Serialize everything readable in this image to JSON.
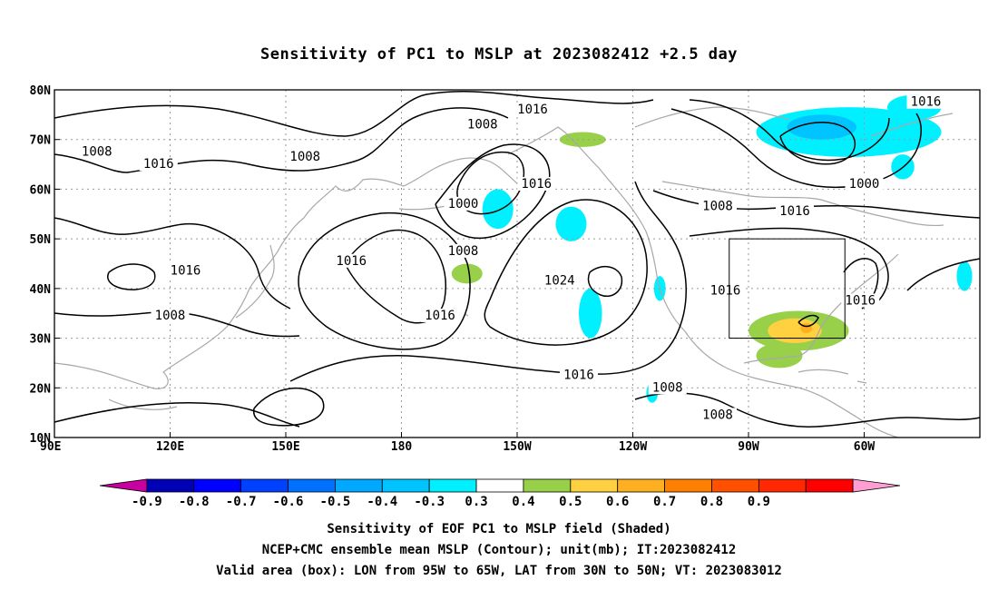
{
  "title": "Sensitivity of PC1 to MSLP at 2023082412 +2.5 day",
  "axes": {
    "lon_labels": [
      "90E",
      "120E",
      "150E",
      "180",
      "150W",
      "120W",
      "90W",
      "60W"
    ],
    "lat_labels": [
      "80N",
      "70N",
      "60N",
      "50N",
      "40N",
      "30N",
      "20N",
      "10N"
    ]
  },
  "isobar_labels": [
    {
      "text": "1016",
      "lon": 214,
      "lat": 76.0
    },
    {
      "text": "1008",
      "lon": 201,
      "lat": 73.0
    },
    {
      "text": "1008",
      "lon": 155,
      "lat": 66.5
    },
    {
      "text": "1008",
      "lon": 101,
      "lat": 67.5
    },
    {
      "text": "1016",
      "lon": 117,
      "lat": 65.0
    },
    {
      "text": "1000",
      "lon": 196,
      "lat": 57.0
    },
    {
      "text": "1016",
      "lon": 215,
      "lat": 61.0
    },
    {
      "text": "1008",
      "lon": 196,
      "lat": 47.5
    },
    {
      "text": "1016",
      "lon": 316,
      "lat": 77.5
    },
    {
      "text": "1000",
      "lon": 300,
      "lat": 61.0
    },
    {
      "text": "1008",
      "lon": 262,
      "lat": 56.5
    },
    {
      "text": "1016",
      "lon": 282,
      "lat": 55.5
    },
    {
      "text": "1016",
      "lon": 124,
      "lat": 43.5
    },
    {
      "text": "1016",
      "lon": 167,
      "lat": 45.5
    },
    {
      "text": "1024",
      "lon": 221,
      "lat": 41.5
    },
    {
      "text": "1016",
      "lon": 190,
      "lat": 34.5
    },
    {
      "text": "1008",
      "lon": 120,
      "lat": 34.5
    },
    {
      "text": "1016",
      "lon": 264,
      "lat": 39.5
    },
    {
      "text": "1016",
      "lon": 299,
      "lat": 37.5
    },
    {
      "text": "1016",
      "lon": 226,
      "lat": 22.5
    },
    {
      "text": "1008",
      "lon": 249,
      "lat": 20.0
    },
    {
      "text": "1008",
      "lon": 262,
      "lat": 14.5
    }
  ],
  "valid_box": {
    "lon_min": 265,
    "lon_max": 295,
    "lat_min": 30,
    "lat_max": 50
  },
  "shaded_areas": [
    {
      "level": -0.3,
      "color": "#00f0ff",
      "lon": 296,
      "lat": 71.5,
      "rlon": 24,
      "rlat": 5
    },
    {
      "level": -0.4,
      "color": "#00c4ff",
      "lon": 289,
      "lat": 72.5,
      "rlon": 9,
      "rlat": 2.5
    },
    {
      "level": -0.3,
      "color": "#00f0ff",
      "lon": 313,
      "lat": 76.5,
      "rlon": 7,
      "rlat": 2.5
    },
    {
      "level": -0.3,
      "color": "#00f0ff",
      "lon": 310,
      "lat": 64.5,
      "rlon": 3,
      "rlat": 2.5
    },
    {
      "level": -0.3,
      "color": "#00f0ff",
      "lon": 205,
      "lat": 56.0,
      "rlon": 4,
      "rlat": 4
    },
    {
      "level": -0.3,
      "color": "#00f0ff",
      "lon": 224,
      "lat": 53.0,
      "rlon": 4,
      "rlat": 3.5
    },
    {
      "level": -0.3,
      "color": "#00f0ff",
      "lon": 229,
      "lat": 35.0,
      "rlon": 3,
      "rlat": 5
    },
    {
      "level": -0.3,
      "color": "#00f0ff",
      "lon": 247,
      "lat": 40.0,
      "rlon": 1.5,
      "rlat": 2.5
    },
    {
      "level": -0.3,
      "color": "#00f0ff",
      "lon": 245,
      "lat": 19.0,
      "rlon": 1.5,
      "rlat": 2
    },
    {
      "level": -0.3,
      "color": "#00f0ff",
      "lon": 326,
      "lat": 42.5,
      "rlon": 2,
      "rlat": 3
    },
    {
      "level": 0.3,
      "color": "#98d04a",
      "lon": 227,
      "lat": 70.0,
      "rlon": 6,
      "rlat": 1.5
    },
    {
      "level": 0.3,
      "color": "#98d04a",
      "lon": 197,
      "lat": 43.0,
      "rlon": 4,
      "rlat": 2
    },
    {
      "level": 0.3,
      "color": "#98d04a",
      "lon": 283,
      "lat": 31.5,
      "rlon": 13,
      "rlat": 4
    },
    {
      "level": 0.3,
      "color": "#98d04a",
      "lon": 278,
      "lat": 26.5,
      "rlon": 6,
      "rlat": 2.5
    },
    {
      "level": 0.4,
      "color": "#ffd040",
      "lon": 282,
      "lat": 31.5,
      "rlon": 7,
      "rlat": 2.5
    },
    {
      "level": 0.5,
      "color": "#ffb020",
      "lon": 285,
      "lat": 32.0,
      "rlon": 1.5,
      "rlat": 1
    }
  ],
  "legend": {
    "levels": [
      "-0.9",
      "-0.8",
      "-0.7",
      "-0.6",
      "-0.5",
      "-0.4",
      "-0.3",
      "0.3",
      "0.4",
      "0.5",
      "0.6",
      "0.7",
      "0.8",
      "0.9"
    ],
    "colors": [
      "#c800a0",
      "#0000b4",
      "#0000ff",
      "#0040ff",
      "#0070ff",
      "#00a8ff",
      "#00c4ff",
      "#00f0ff",
      "#ffffff",
      "#98d04a",
      "#ffd040",
      "#ffb020",
      "#ff8000",
      "#ff5000",
      "#ff2800",
      "#ff0000",
      "#ff9ed2"
    ]
  },
  "captions": {
    "line1": "Sensitivity of EOF PC1 to MSLP field (Shaded)",
    "line2": "NCEP+CMC ensemble mean MSLP (Contour); unit(mb); IT:2023082412",
    "line3": "Valid area (box): LON from 95W to 65W, LAT from 30N to 50N; VT: 2023083012"
  }
}
